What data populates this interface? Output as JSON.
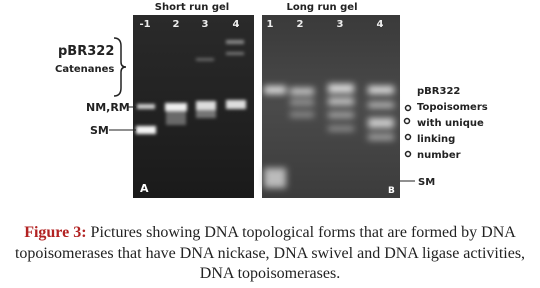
{
  "gel_a": {
    "title": "Short run gel",
    "lanes": [
      "-1",
      "2",
      "3",
      "4"
    ],
    "panel": "A",
    "labels": {
      "plasmid": "pBR322",
      "catenanes": "Catenanes",
      "nm_rm": "NM,RM",
      "sm": "SM"
    }
  },
  "gel_b": {
    "title": "Long run gel",
    "lanes": [
      "1",
      "2",
      "3",
      "4"
    ],
    "panel": "B",
    "labels": [
      "pBR322",
      "Topoisomers",
      "with unique",
      "linking",
      "number"
    ],
    "sm": "SM"
  },
  "caption": {
    "label": "Figure 3:",
    "text": "Pictures showing DNA topological forms that are formed by DNA topoisomerases that have DNA nickase, DNA swivel and DNA ligase activities, DNA topoisomerases."
  }
}
